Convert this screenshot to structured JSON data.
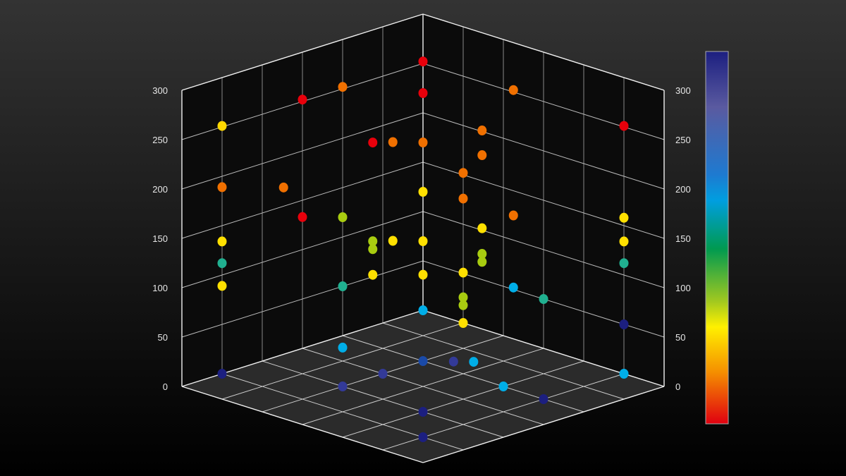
{
  "chart_data": {
    "type": "scatter",
    "dimensions": "3d",
    "title": "",
    "xlabel": "",
    "ylabel": "",
    "zlabel": "",
    "xlim": [
      0,
      6
    ],
    "zlim": [
      0,
      6
    ],
    "ylim": [
      0,
      300
    ],
    "y_ticks": [
      0,
      50,
      100,
      150,
      200,
      250,
      300
    ],
    "grid": true,
    "colorbar": {
      "placement": "right",
      "stops": [
        "#1c1f80",
        "#5a5aa0",
        "#1e7ad0",
        "#009ee0",
        "#009a50",
        "#a0c820",
        "#fff000",
        "#f59000",
        "#e00010"
      ]
    },
    "colors": {
      "background_top": "#333333",
      "background_bottom": "#000000",
      "wall": "#0b0b0b",
      "floor": "#2b2b2b"
    },
    "points": [
      {
        "x": 5,
        "z": 0,
        "y": 251,
        "color": "#ffd800"
      },
      {
        "x": 5,
        "z": 0,
        "y": 189,
        "color": "#f07000"
      },
      {
        "x": 5,
        "z": 0,
        "y": 134,
        "color": "#ffe000"
      },
      {
        "x": 5,
        "z": 0,
        "y": 112,
        "color": "#20b090"
      },
      {
        "x": 5,
        "z": 0,
        "y": 89,
        "color": "#ffe000"
      },
      {
        "x": 3.47,
        "z": 0,
        "y": 169,
        "color": "#f07000"
      },
      {
        "x": 3,
        "z": 0,
        "y": 252,
        "color": "#e8000b"
      },
      {
        "x": 3,
        "z": 0,
        "y": 133,
        "color": "#e8000b"
      },
      {
        "x": 2,
        "z": 0,
        "y": 252,
        "color": "#f07000"
      },
      {
        "x": 2,
        "z": 0,
        "y": 120,
        "color": "#a8cc10"
      },
      {
        "x": 2,
        "z": 0,
        "y": 50,
        "color": "#20b090"
      },
      {
        "x": 1.25,
        "z": 0,
        "y": 186,
        "color": "#e8000b"
      },
      {
        "x": 1.25,
        "z": 0,
        "y": 86,
        "color": "#a8cc10"
      },
      {
        "x": 1.25,
        "z": 0,
        "y": 78,
        "color": "#a8cc10"
      },
      {
        "x": 1.25,
        "z": 0,
        "y": 52,
        "color": "#ffe000"
      },
      {
        "x": 0.75,
        "z": 0,
        "y": 180,
        "color": "#f07000"
      },
      {
        "x": 0.75,
        "z": 0,
        "y": 80,
        "color": "#ffe000"
      },
      {
        "x": 0,
        "z": 0,
        "y": 252,
        "color": "#e8000b"
      },
      {
        "x": 0,
        "z": 0,
        "y": 220,
        "color": "#e8000b"
      },
      {
        "x": 0,
        "z": 0,
        "y": 170,
        "color": "#f07000"
      },
      {
        "x": 0,
        "z": 0,
        "y": 120,
        "color": "#ffe000"
      },
      {
        "x": 0,
        "z": 0,
        "y": 70,
        "color": "#ffe000"
      },
      {
        "x": 0,
        "z": 0,
        "y": 36,
        "color": "#ffe000"
      },
      {
        "x": 0,
        "z": 0,
        "y": 0,
        "color": "#00aee8"
      },
      {
        "x": 0,
        "z": 1,
        "y": 152,
        "color": "#f07000"
      },
      {
        "x": 0,
        "z": 1,
        "y": 126,
        "color": "#f07000"
      },
      {
        "x": 0,
        "z": 1,
        "y": 51,
        "color": "#ffe000"
      },
      {
        "x": 0,
        "z": 1,
        "y": 26,
        "color": "#a8cc10"
      },
      {
        "x": 0,
        "z": 1,
        "y": 18,
        "color": "#a8cc10"
      },
      {
        "x": 0,
        "z": 1,
        "y": 0,
        "color": "#ffe000"
      },
      {
        "x": 0,
        "z": 1.47,
        "y": 201,
        "color": "#f07000"
      },
      {
        "x": 0,
        "z": 1.47,
        "y": 176,
        "color": "#f07000"
      },
      {
        "x": 0,
        "z": 1.47,
        "y": 102,
        "color": "#ffe000"
      },
      {
        "x": 0,
        "z": 1.47,
        "y": 76,
        "color": "#a8cc10"
      },
      {
        "x": 0,
        "z": 1.47,
        "y": 68,
        "color": "#a8cc10"
      },
      {
        "x": 0,
        "z": 2.25,
        "y": 252,
        "color": "#f07000"
      },
      {
        "x": 0,
        "z": 2.25,
        "y": 125,
        "color": "#f07000"
      },
      {
        "x": 0,
        "z": 2.25,
        "y": 52,
        "color": "#00aee8"
      },
      {
        "x": 0,
        "z": 3,
        "y": 50,
        "color": "#20b090"
      },
      {
        "x": 0,
        "z": 5,
        "y": 251,
        "color": "#e8000b"
      },
      {
        "x": 0,
        "z": 5,
        "y": 158,
        "color": "#ffe000"
      },
      {
        "x": 0,
        "z": 5,
        "y": 134,
        "color": "#ffe000"
      },
      {
        "x": 0,
        "z": 5,
        "y": 112,
        "color": "#20b090"
      },
      {
        "x": 0,
        "z": 5,
        "y": 50,
        "color": "#1c1f80"
      },
      {
        "x": 5,
        "z": 0,
        "y": 0,
        "color": "#1c1f80"
      },
      {
        "x": 2.47,
        "z": 0.47,
        "y": 0,
        "color": "#00aee8"
      },
      {
        "x": 4,
        "z": 2,
        "y": 0,
        "color": "#333a98"
      },
      {
        "x": 3,
        "z": 2,
        "y": 0,
        "color": "#333a98"
      },
      {
        "x": 2,
        "z": 2,
        "y": 0,
        "color": "#1a4aa8"
      },
      {
        "x": 4,
        "z": 4,
        "y": 0,
        "color": "#1c1f80"
      },
      {
        "x": 5,
        "z": 5,
        "y": 0,
        "color": "#1c1f80"
      },
      {
        "x": 1.64,
        "z": 2.4,
        "y": 0,
        "color": "#333a98"
      },
      {
        "x": 1.4,
        "z": 2.66,
        "y": 0,
        "color": "#00aee8"
      },
      {
        "x": 2,
        "z": 4,
        "y": 0,
        "color": "#00aee8"
      },
      {
        "x": 2,
        "z": 5,
        "y": 0,
        "color": "#1c1f80"
      },
      {
        "x": 0,
        "z": 5,
        "y": 0,
        "color": "#00aee8"
      }
    ]
  }
}
